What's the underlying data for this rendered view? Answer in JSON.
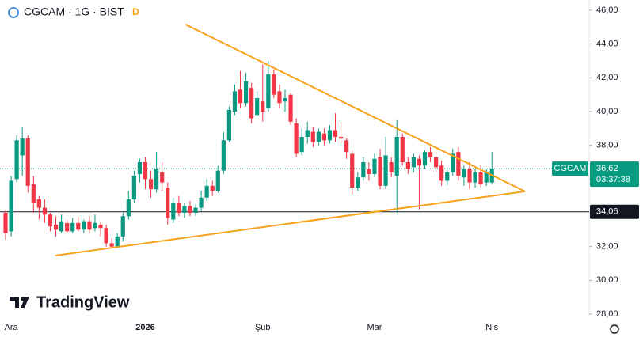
{
  "chart_data": {
    "type": "candlestick",
    "title": "CGCAM · 1G · BIST",
    "badge": "D",
    "logo": "TradingView",
    "symbol": "CGCAM",
    "up_color": "#089981",
    "down_color": "#f23645",
    "categories": [
      null,
      "Ara",
      null,
      null,
      null,
      null,
      null,
      null,
      null,
      null,
      null,
      null,
      null,
      null,
      null,
      null,
      null,
      null,
      null,
      null,
      null,
      null,
      null,
      null,
      null,
      "2026",
      null,
      null,
      null,
      null,
      null,
      null,
      null,
      null,
      null,
      null,
      null,
      null,
      null,
      null,
      null,
      null,
      null,
      null,
      null,
      null,
      "Şub",
      null,
      null,
      null,
      null,
      null,
      null,
      null,
      null,
      null,
      null,
      null,
      null,
      null,
      null,
      null,
      null,
      null,
      null,
      null,
      "Mar",
      null,
      null,
      null,
      null,
      null,
      null,
      null,
      null,
      null,
      null,
      null,
      null,
      null,
      null,
      null,
      null,
      null,
      null,
      null,
      null,
      "Nis"
    ],
    "open": [
      34.0,
      32.9,
      36.0,
      37.4,
      38.4,
      35.7,
      34.8,
      34.3,
      33.9,
      33.3,
      32.9,
      33.4,
      32.9,
      33.4,
      33.0,
      33.5,
      33.1,
      33.3,
      33.1,
      32.2,
      32.0,
      32.6,
      33.8,
      34.8,
      36.3,
      37.0,
      36.0,
      35.4,
      36.4,
      35.5,
      33.6,
      34.6,
      34.0,
      34.4,
      34.0,
      34.3,
      34.9,
      35.6,
      35.3,
      36.5,
      38.3,
      40.0,
      41.3,
      40.5,
      41.4,
      39.8,
      40.6,
      40.2,
      42.2,
      41.2,
      40.6,
      41.0,
      39.3,
      37.6,
      38.5,
      38.8,
      38.2,
      38.7,
      38.3,
      38.9,
      38.5,
      38.3,
      37.5,
      35.5,
      36.1,
      36.6,
      36.3,
      37.3,
      35.6,
      37.0,
      36.2,
      38.5,
      37.0,
      36.7,
      37.2,
      36.8,
      37.6,
      37.3,
      36.8,
      35.9,
      36.4,
      37.6,
      36.1,
      36.6,
      35.8,
      36.4,
      35.8,
      35.8
    ],
    "high": [
      34.2,
      36.2,
      38.6,
      39.1,
      38.6,
      36.2,
      35.0,
      34.8,
      34.0,
      33.8,
      33.9,
      33.6,
      33.7,
      33.8,
      33.6,
      33.8,
      33.9,
      33.5,
      33.3,
      32.5,
      32.8,
      34.0,
      35.3,
      36.5,
      37.2,
      37.3,
      36.5,
      37.6,
      37.0,
      35.8,
      34.9,
      35.0,
      34.6,
      34.7,
      34.5,
      35.3,
      36.0,
      35.9,
      36.8,
      38.8,
      40.3,
      41.6,
      42.4,
      42.3,
      41.7,
      41.2,
      42.8,
      43.0,
      42.5,
      41.6,
      41.3,
      41.1,
      39.6,
      39.0,
      39.4,
      39.1,
      39.0,
      39.0,
      39.2,
      39.9,
      39.4,
      38.4,
      37.7,
      36.4,
      37.3,
      37.0,
      37.5,
      37.8,
      38.5,
      37.3,
      39.5,
      38.7,
      37.3,
      37.5,
      37.4,
      37.7,
      37.9,
      37.6,
      37.1,
      36.7,
      37.8,
      37.9,
      36.8,
      37.0,
      36.6,
      36.8,
      36.6,
      37.6
    ],
    "low": [
      32.4,
      32.6,
      35.8,
      36.2,
      35.2,
      34.0,
      33.6,
      33.4,
      32.9,
      32.6,
      32.8,
      32.8,
      32.8,
      32.9,
      32.8,
      32.8,
      32.9,
      32.6,
      32.0,
      31.9,
      31.9,
      32.3,
      33.6,
      34.6,
      35.8,
      35.4,
      34.9,
      35.2,
      35.3,
      33.3,
      33.4,
      33.8,
      33.7,
      33.8,
      33.8,
      34.1,
      34.7,
      35.0,
      35.2,
      36.3,
      38.2,
      39.8,
      40.2,
      40.3,
      39.3,
      39.7,
      39.4,
      40.0,
      40.8,
      40.2,
      40.0,
      39.2,
      37.3,
      37.4,
      38.1,
      37.9,
      38.0,
      38.0,
      38.1,
      38.2,
      38.1,
      37.2,
      35.1,
      35.3,
      35.9,
      35.9,
      36.1,
      35.4,
      35.4,
      36.1,
      34.0,
      36.8,
      36.3,
      36.4,
      34.2,
      36.6,
      37.0,
      36.4,
      35.6,
      35.6,
      36.2,
      35.9,
      35.6,
      35.4,
      35.5,
      35.5,
      35.6,
      35.7
    ],
    "close": [
      32.8,
      35.9,
      38.3,
      38.4,
      35.6,
      34.6,
      34.3,
      33.9,
      33.2,
      33.0,
      33.5,
      32.9,
      33.4,
      33.0,
      33.5,
      33.0,
      33.4,
      33.1,
      32.2,
      32.0,
      32.6,
      33.8,
      34.8,
      36.2,
      37.0,
      36.0,
      35.4,
      36.6,
      35.8,
      33.7,
      34.6,
      34.0,
      34.4,
      34.0,
      34.3,
      34.9,
      35.6,
      35.3,
      36.5,
      38.3,
      40.1,
      41.2,
      40.5,
      41.8,
      39.6,
      40.8,
      40.0,
      42.2,
      41.0,
      40.5,
      40.8,
      39.4,
      37.5,
      38.5,
      38.9,
      38.2,
      38.8,
      38.3,
      38.9,
      38.5,
      38.4,
      37.6,
      35.5,
      36.1,
      37.0,
      36.3,
      37.2,
      35.6,
      37.4,
      36.4,
      38.5,
      37.0,
      36.6,
      37.3,
      36.8,
      37.6,
      37.3,
      36.7,
      35.9,
      36.4,
      37.5,
      36.2,
      36.6,
      35.8,
      36.4,
      35.7,
      36.4,
      36.62
    ],
    "ylim": [
      28,
      46
    ],
    "yticks": [
      {
        "value": 28,
        "label": "28,00"
      },
      {
        "value": 30,
        "label": "30,00"
      },
      {
        "value": 32,
        "label": "32,00"
      },
      {
        "value": 34,
        "label": "34,00"
      },
      {
        "value": 36,
        "label": "36,00"
      },
      {
        "value": 38,
        "label": "38,00"
      },
      {
        "value": 40,
        "label": "40,00"
      },
      {
        "value": 42,
        "label": "42,00"
      },
      {
        "value": 44,
        "label": "44,00"
      },
      {
        "value": 46,
        "label": "46,00"
      }
    ],
    "last_price": {
      "value": 36.62,
      "label": "36,62",
      "countdown": "03:37:38"
    },
    "hline": {
      "value": 34.06,
      "label": "34,06"
    },
    "trendlines": [
      {
        "color": "#f7a21b",
        "x": [
          32.2,
          92.9
        ],
        "y": [
          45.16,
          35.27
        ]
      },
      {
        "color": "#f7a21b",
        "x": [
          8.9,
          92.9
        ],
        "y": [
          31.47,
          35.27
        ]
      }
    ]
  }
}
